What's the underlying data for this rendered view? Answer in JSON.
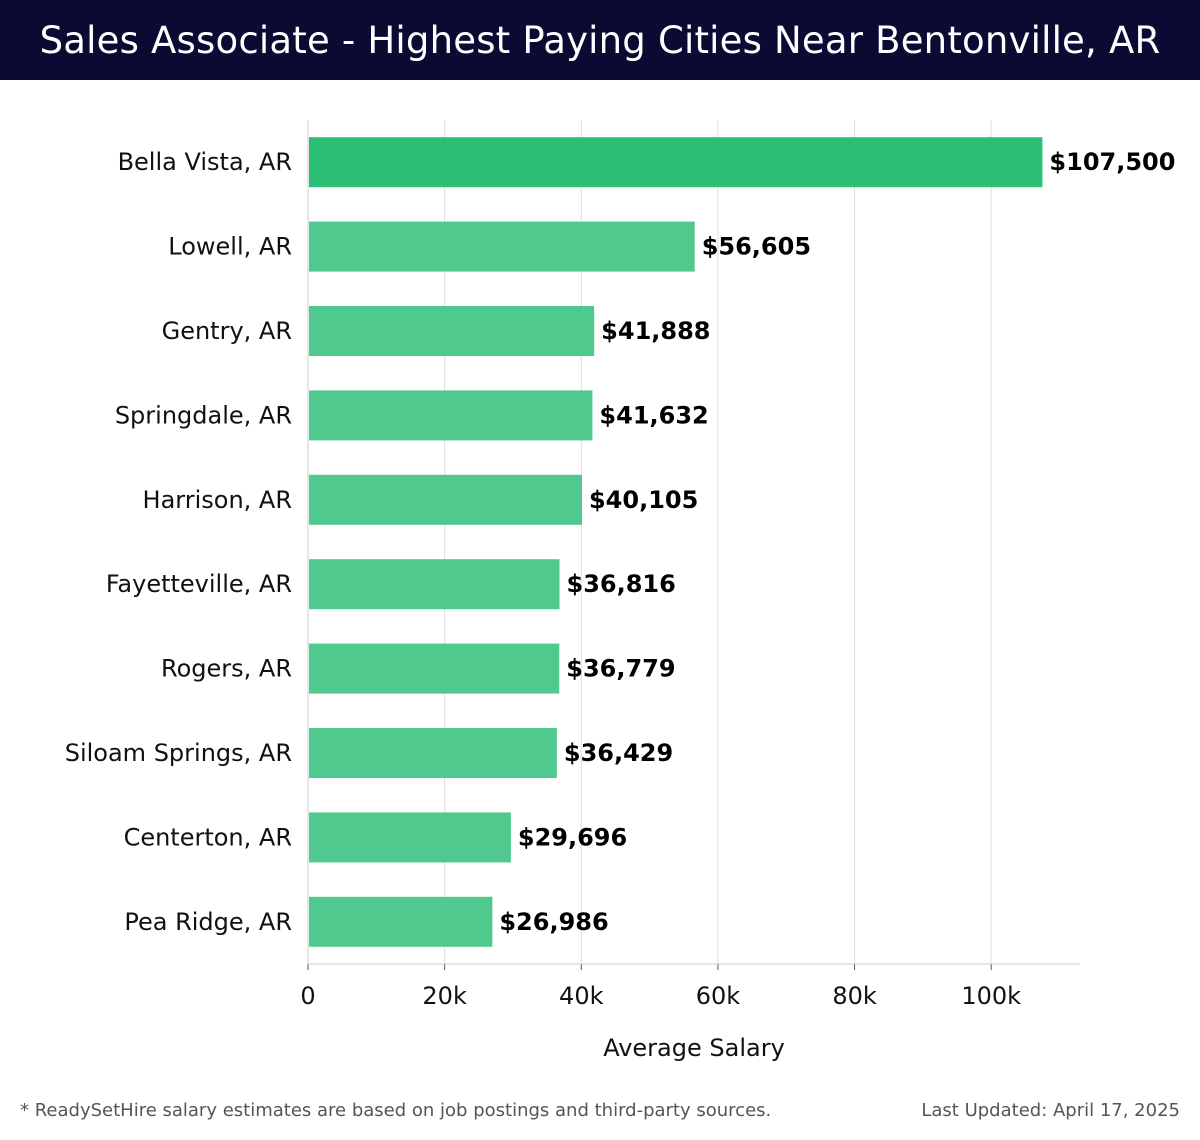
{
  "header": {
    "title": "Sales Associate - Highest Paying Cities Near Bentonville, AR"
  },
  "footer": {
    "note": "* ReadySetHire salary estimates are based on job postings and third-party sources.",
    "updated": "Last Updated: April 17, 2025"
  },
  "colors": {
    "header_bg": "#0a0a33",
    "bar_top": "#2bbf76",
    "bar": "#50c98f",
    "grid": "#dddddd"
  },
  "chart_data": {
    "type": "bar",
    "orientation": "horizontal",
    "categories": [
      "Bella Vista, AR",
      "Lowell, AR",
      "Gentry, AR",
      "Springdale, AR",
      "Harrison, AR",
      "Fayetteville, AR",
      "Rogers, AR",
      "Siloam Springs, AR",
      "Centerton, AR",
      "Pea Ridge, AR"
    ],
    "values": [
      107500,
      56605,
      41888,
      41632,
      40105,
      36816,
      36779,
      36429,
      29696,
      26986
    ],
    "value_labels": [
      "$107,500",
      "$56,605",
      "$41,888",
      "$41,632",
      "$40,105",
      "$36,816",
      "$36,779",
      "$36,429",
      "$29,696",
      "$26,986"
    ],
    "xlabel": "Average Salary",
    "ylabel": "",
    "xlim": [
      0,
      113000
    ],
    "x_ticks": [
      0,
      20000,
      40000,
      60000,
      80000,
      100000
    ],
    "x_tick_labels": [
      "0",
      "20k",
      "40k",
      "60k",
      "80k",
      "100k"
    ],
    "grid": true,
    "legend": "none"
  }
}
